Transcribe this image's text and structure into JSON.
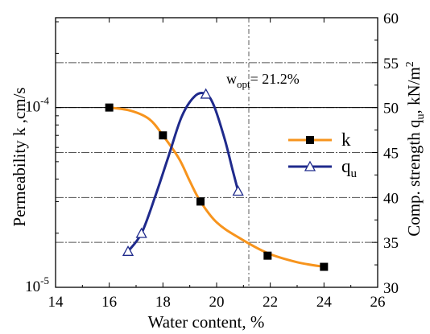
{
  "chart_data": {
    "type": "line",
    "xlabel": "Water content, %",
    "ylabel_left": "Permeability k ,cm/s",
    "ylabel_right": "Comp. strength q",
    "ylabel_right_sub": "u",
    "ylabel_right_unit": ", kN/m",
    "ylabel_right_sup": "2",
    "xlim": [
      14,
      26
    ],
    "x_ticks": [
      "14",
      "16",
      "18",
      "20",
      "22",
      "24",
      "26"
    ],
    "left_axis": {
      "scale": "log",
      "ylim": [
        1e-05,
        0.000316
      ],
      "tick_labels": [
        {
          "value": 1e-05,
          "base": "10",
          "exp": "-5"
        },
        {
          "value": 0.0001,
          "base": "10",
          "exp": "-4"
        }
      ]
    },
    "right_axis": {
      "scale": "linear",
      "ylim": [
        30,
        60
      ],
      "ticks": [
        "30",
        "35",
        "40",
        "45",
        "50",
        "55",
        "60"
      ]
    },
    "series": [
      {
        "name": "k",
        "axis": "left",
        "color": "#f7941d",
        "marker": "filled-square",
        "points": [
          [
            16,
            0.0001
          ],
          [
            18,
            7e-05
          ],
          [
            19.4,
            3e-05
          ],
          [
            21.9,
            1.5e-05
          ],
          [
            24,
            1.3e-05
          ]
        ],
        "curve": [
          [
            16,
            0.0001
          ],
          [
            16.8,
            9.6e-05
          ],
          [
            17.5,
            8.6e-05
          ],
          [
            18,
            7e-05
          ],
          [
            18.6,
            5.2e-05
          ],
          [
            19.0,
            3.9e-05
          ],
          [
            19.4,
            3e-05
          ],
          [
            20.0,
            2.3e-05
          ],
          [
            20.8,
            1.9e-05
          ],
          [
            21.9,
            1.55e-05
          ],
          [
            23,
            1.38e-05
          ],
          [
            24,
            1.3e-05
          ]
        ]
      },
      {
        "name": "q",
        "name_sub": "u",
        "axis": "right",
        "color": "#1f2a8c",
        "marker": "open-triangle",
        "points": [
          [
            16.7,
            34.0
          ],
          [
            17.2,
            36.0
          ],
          [
            19.6,
            51.5
          ],
          [
            20.8,
            40.7
          ]
        ],
        "curve": [
          [
            16.7,
            34.0
          ],
          [
            17.2,
            36.0
          ],
          [
            17.7,
            40.0
          ],
          [
            18.2,
            44.5
          ],
          [
            18.7,
            49.0
          ],
          [
            19.2,
            51.3
          ],
          [
            19.6,
            51.5
          ],
          [
            19.9,
            50.2
          ],
          [
            20.3,
            46.5
          ],
          [
            20.6,
            43.0
          ],
          [
            20.8,
            40.7
          ]
        ]
      }
    ],
    "reference_line": {
      "x": 21.2,
      "label_main": "w",
      "label_sub": "opt",
      "label_rest": "= 21.2%"
    },
    "gridlines": "dashed-horizontal",
    "legend_position": "center-right"
  }
}
